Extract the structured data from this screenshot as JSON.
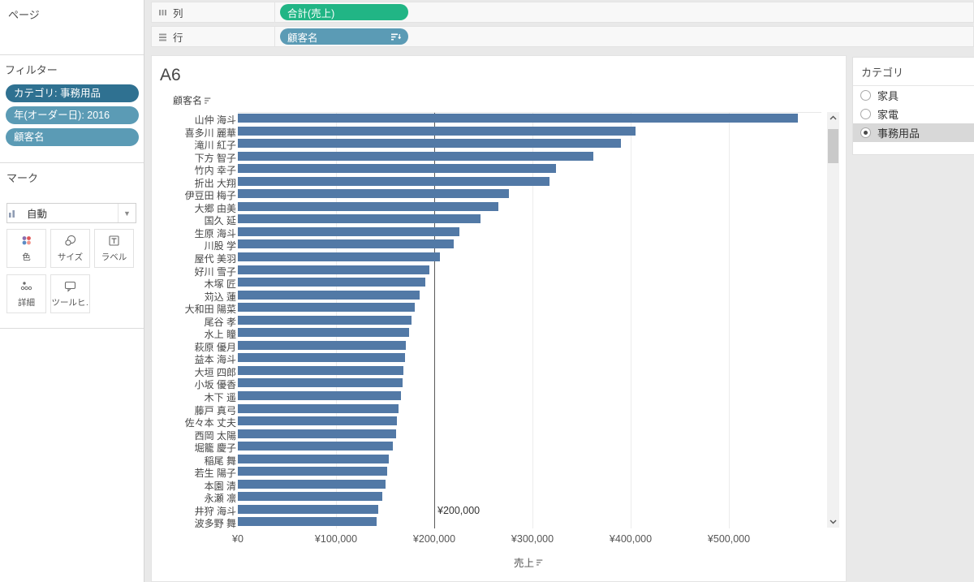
{
  "colors": {
    "bar_blue": "#5279a6",
    "pill_green": "#21b585",
    "pill_blue": "#5b9bb5",
    "pill_dark_blue": "#2f7191",
    "reference_line": "#5a5a5a",
    "selected_row_bg": "#d8d8d8"
  },
  "shelves": {
    "columns": {
      "label": "列",
      "pill": "合計(売上)"
    },
    "rows": {
      "label": "行",
      "pill": "顧客名"
    }
  },
  "left_panel": {
    "pages_title": "ページ",
    "filters_title": "フィルター",
    "filter_pills": [
      {
        "label": "カテゴリ: 事務用品",
        "tone": "dark"
      },
      {
        "label": "年(オーダー日): 2016",
        "tone": "light"
      },
      {
        "label": "顧客名",
        "tone": "light"
      }
    ],
    "marks": {
      "title": "マーク",
      "mark_type": "自動",
      "buttons": [
        {
          "label": "色",
          "icon": "color-icon"
        },
        {
          "label": "サイズ",
          "icon": "size-icon"
        },
        {
          "label": "ラベル",
          "icon": "label-icon"
        },
        {
          "label": "詳細",
          "icon": "detail-icon"
        },
        {
          "label": "ツールヒ…",
          "icon": "tooltip-icon"
        }
      ]
    }
  },
  "chart": {
    "title": "A6",
    "row_header": "顧客名",
    "axis_title": "売上",
    "reference_label": "¥200,000"
  },
  "chart_data": {
    "type": "bar",
    "orientation": "horizontal",
    "title": "A6",
    "xlabel": "売上",
    "ylabel": "顧客名",
    "xlim": [
      0,
      580000
    ],
    "x_ticks": [
      "¥0",
      "¥100,000",
      "¥200,000",
      "¥300,000",
      "¥400,000",
      "¥500,000"
    ],
    "x_tick_values": [
      0,
      100000,
      200000,
      300000,
      400000,
      500000
    ],
    "reference_line": 200000,
    "grid": true,
    "bar_color": "#5279a6",
    "categories": [
      "山仲 海斗",
      "喜多川 麗華",
      "滝川 紅子",
      "下方 智子",
      "竹内 幸子",
      "折出 大翔",
      "伊豆田 梅子",
      "大郷 由美",
      "国久 延",
      "生原 海斗",
      "川股 学",
      "屋代 美羽",
      "好川 雪子",
      "木塚 匠",
      "苅込 蓮",
      "大和田 陽菜",
      "尾谷 孝",
      "水上 瞳",
      "萩原 優月",
      "益本 海斗",
      "大垣 四郎",
      "小坂 優香",
      "木下 遥",
      "藤戸 真弓",
      "佐々本 丈夫",
      "西岡 太陽",
      "堀籠 慶子",
      "稲尾 舞",
      "若生 陽子",
      "本園 清",
      "永瀬 凛",
      "井狩 海斗",
      "波多野 舞"
    ],
    "values": [
      570000,
      405000,
      390000,
      362000,
      324000,
      317000,
      276000,
      265000,
      247000,
      226000,
      220000,
      206000,
      195000,
      191000,
      185000,
      180000,
      177000,
      174000,
      171000,
      170000,
      169000,
      168000,
      166000,
      164000,
      162000,
      161000,
      158000,
      154000,
      152000,
      150000,
      147000,
      143000,
      141000
    ]
  },
  "category_panel": {
    "title": "カテゴリ",
    "options": [
      {
        "label": "家具",
        "selected": false
      },
      {
        "label": "家電",
        "selected": false
      },
      {
        "label": "事務用品",
        "selected": true
      }
    ]
  }
}
